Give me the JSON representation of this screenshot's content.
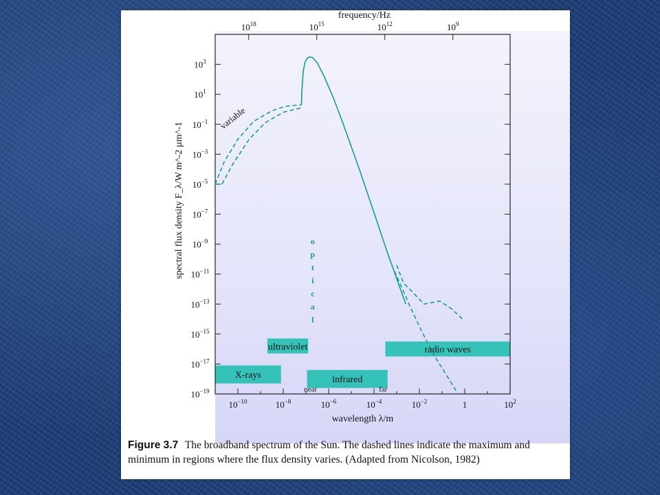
{
  "chart_data": {
    "type": "line",
    "title": "",
    "xlabel": "wavelength λ/m",
    "ylabel": "spectral flux density F_λ/W m^-2 µm^-1",
    "x2label": "frequency/Hz",
    "x_scale": "log",
    "y_scale": "log",
    "xlim_log10": [
      -11,
      2
    ],
    "ylim_log10": [
      -19,
      5
    ],
    "x_ticks": [
      {
        "b": "10",
        "e": "−10",
        "v": -10
      },
      {
        "b": "10",
        "e": "−8",
        "v": -8
      },
      {
        "b": "10",
        "e": "−6",
        "v": -6
      },
      {
        "b": "10",
        "e": "−4",
        "v": -4
      },
      {
        "b": "10",
        "e": "−2",
        "v": -2
      },
      {
        "b": "1",
        "e": "",
        "v": 0
      },
      {
        "b": "10",
        "e": "2",
        "v": 2
      }
    ],
    "y_ticks": [
      {
        "b": "10",
        "e": "3",
        "v": 3
      },
      {
        "b": "10",
        "e": "1",
        "v": 1
      },
      {
        "b": "10",
        "e": "−1",
        "v": -1
      },
      {
        "b": "10",
        "e": "−3",
        "v": -3
      },
      {
        "b": "10",
        "e": "−5",
        "v": -5
      },
      {
        "b": "10",
        "e": "−7",
        "v": -7
      },
      {
        "b": "10",
        "e": "−9",
        "v": -9
      },
      {
        "b": "10",
        "e": "−11",
        "v": -11
      },
      {
        "b": "10",
        "e": "−13",
        "v": -13
      },
      {
        "b": "10",
        "e": "−15",
        "v": -15
      },
      {
        "b": "10",
        "e": "−17",
        "v": -17
      },
      {
        "b": "10",
        "e": "−19",
        "v": -19
      }
    ],
    "top_ticks": [
      {
        "b": "10",
        "e": "18",
        "v": 18
      },
      {
        "b": "10",
        "e": "15",
        "v": 15
      },
      {
        "b": "10",
        "e": "12",
        "v": 12
      },
      {
        "b": "10",
        "e": "9",
        "v": 9
      }
    ],
    "series": [
      {
        "style": "solid",
        "points_log10": [
          [
            -7.2,
            0.3
          ],
          [
            -7.18,
            1.2
          ],
          [
            -7.12,
            2.5
          ],
          [
            -7.05,
            3.1
          ],
          [
            -6.95,
            3.4
          ],
          [
            -6.85,
            3.5
          ],
          [
            -6.7,
            3.45
          ],
          [
            -6.5,
            3.1
          ],
          [
            -6.2,
            2.2
          ],
          [
            -5.8,
            0.8
          ],
          [
            -5.4,
            -0.8
          ],
          [
            -5.0,
            -2.5
          ],
          [
            -4.6,
            -4.2
          ],
          [
            -4.2,
            -6.0
          ],
          [
            -3.8,
            -7.8
          ],
          [
            -3.4,
            -9.6
          ],
          [
            -3.0,
            -11.3
          ],
          [
            -2.6,
            -13.0
          ]
        ]
      },
      {
        "style": "dashed",
        "points_log10": [
          [
            -11,
            -5.0
          ],
          [
            -10.6,
            -3.5
          ],
          [
            -10.0,
            -2.0
          ],
          [
            -9.3,
            -0.8
          ],
          [
            -8.5,
            -0.1
          ],
          [
            -7.9,
            0.2
          ],
          [
            -7.2,
            0.3
          ]
        ]
      },
      {
        "style": "dashed",
        "points_log10": [
          [
            -11,
            -5.0
          ],
          [
            -10.7,
            -5.0
          ],
          [
            -10.2,
            -3.6
          ],
          [
            -9.5,
            -2.0
          ],
          [
            -8.8,
            -0.9
          ],
          [
            -8.0,
            -0.2
          ],
          [
            -7.2,
            0.1
          ]
        ]
      },
      {
        "style": "dashed",
        "points_log10": [
          [
            -3.1,
            -10.8
          ],
          [
            -2.8,
            -11.8
          ],
          [
            -2.4,
            -13.2
          ],
          [
            -1.9,
            -14.8
          ],
          [
            -1.4,
            -16.3
          ],
          [
            -0.7,
            -18.0
          ],
          [
            -0.3,
            -19.0
          ]
        ]
      },
      {
        "style": "dashed",
        "points_log10": [
          [
            -3.0,
            -10.4
          ],
          [
            -2.7,
            -11.6
          ],
          [
            -2.3,
            -12.2
          ],
          [
            -1.8,
            -13.0
          ],
          [
            -1.1,
            -12.8
          ],
          [
            -0.6,
            -13.3
          ],
          [
            -0.1,
            -14.0
          ]
        ]
      }
    ],
    "bands": [
      {
        "label": "X-rays",
        "x_log10": [
          -11,
          -8.1
        ],
        "y_log10": [
          -18.3,
          -17.1
        ]
      },
      {
        "label": "ultraviolet",
        "x_log10": [
          -8.7,
          -6.9
        ],
        "y_log10": [
          -16.3,
          -15.3
        ]
      },
      {
        "label": "infrared",
        "x_log10": [
          -6.95,
          -3.4
        ],
        "y_log10": [
          -18.6,
          -17.4
        ]
      },
      {
        "label": "radio waves",
        "x_log10": [
          -3.5,
          2
        ],
        "y_log10": [
          -16.5,
          -15.5
        ]
      }
    ],
    "annotations": {
      "variable": "variable",
      "optical": [
        "o",
        "p",
        "t",
        "i",
        "c",
        "a",
        "l"
      ],
      "near": "near",
      "far": "far"
    },
    "colors": {
      "curve": "#139c8c",
      "band": "#2bc0b4",
      "axis": "#222222"
    }
  },
  "caption": {
    "figure_label": "Figure 3.7",
    "text": "The broadband spectrum of the Sun. The dashed lines indicate the maximum and minimum in regions where the flux density varies. (Adapted from Nicolson, 1982)"
  }
}
